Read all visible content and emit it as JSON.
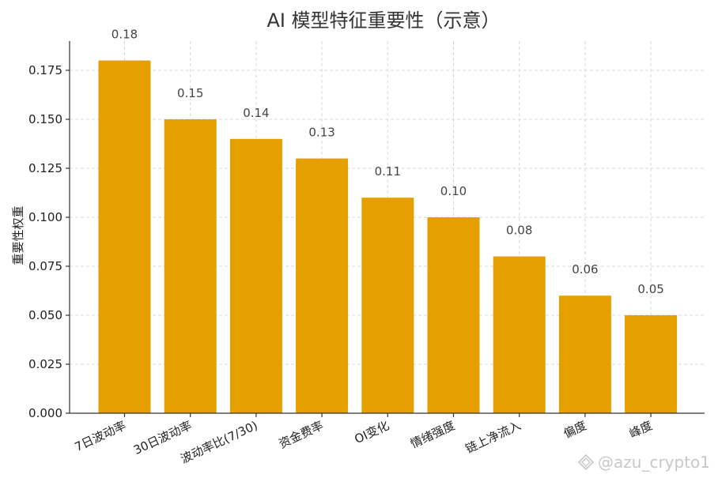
{
  "chart_data": {
    "type": "bar",
    "title": "AI 模型特征重要性（示意）",
    "xlabel": "",
    "ylabel": "重要性权重",
    "categories": [
      "7日波动率",
      "30日波动率",
      "波动率比(7/30)",
      "资金费率",
      "OI变化",
      "情绪强度",
      "链上净流入",
      "偏度",
      "峰度"
    ],
    "values": [
      0.18,
      0.15,
      0.14,
      0.13,
      0.11,
      0.1,
      0.08,
      0.06,
      0.05
    ],
    "value_labels": [
      "0.18",
      "0.15",
      "0.14",
      "0.13",
      "0.11",
      "0.10",
      "0.08",
      "0.06",
      "0.05"
    ],
    "ylim": [
      0,
      0.18
    ],
    "yticks": [
      0.0,
      0.025,
      0.05,
      0.075,
      0.1,
      0.125,
      0.15,
      0.175
    ],
    "ytick_labels": [
      "0.000",
      "0.025",
      "0.050",
      "0.075",
      "0.100",
      "0.125",
      "0.150",
      "0.175"
    ],
    "grid": true,
    "bar_color": "#E5A000"
  },
  "watermark": {
    "text": "@azu_crypto1",
    "icon": "diamond-logo-icon"
  }
}
